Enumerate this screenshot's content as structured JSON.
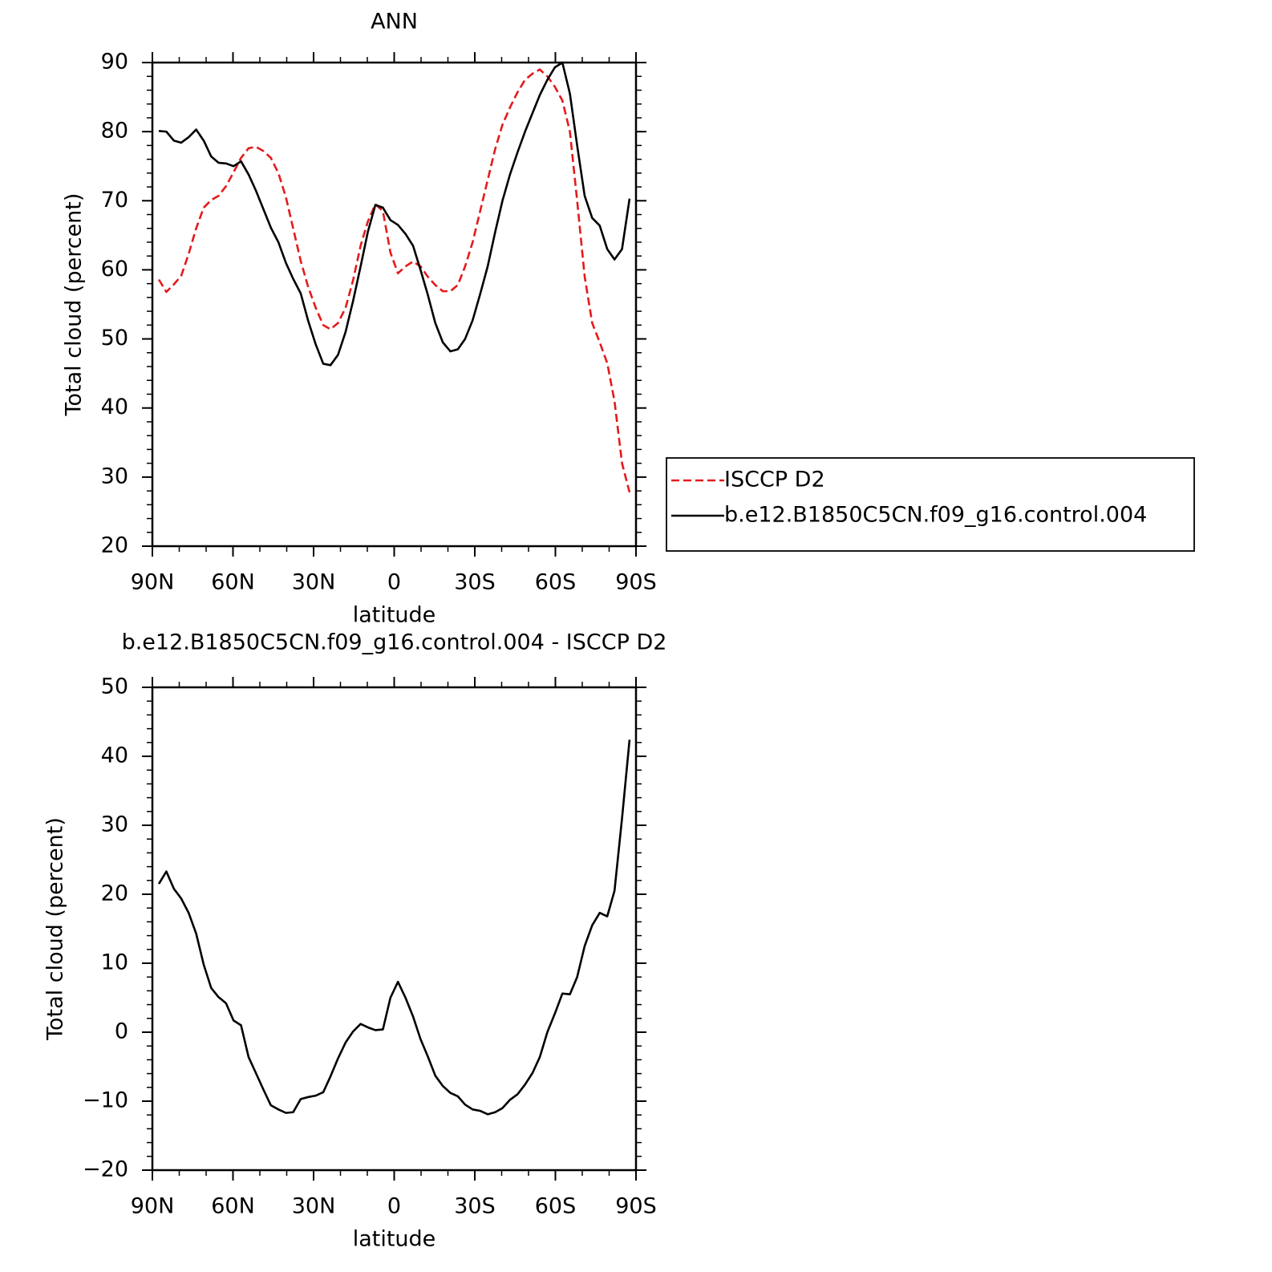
{
  "chart_data": [
    {
      "type": "line",
      "title": "ANN",
      "xlabel": "latitude",
      "ylabel": "Total cloud (percent)",
      "xlim": [
        90,
        -90
      ],
      "xticks": [
        {
          "value": 90,
          "label": "90N"
        },
        {
          "value": 60,
          "label": "60N"
        },
        {
          "value": 30,
          "label": "30N"
        },
        0,
        {
          "value": -30,
          "label": "30S"
        },
        {
          "value": -60,
          "label": "60S"
        },
        {
          "value": -90,
          "label": "90S"
        }
      ],
      "xminor": 10,
      "ylim": [
        20,
        90
      ],
      "yticks": [
        20,
        30,
        40,
        50,
        60,
        70,
        80,
        90
      ],
      "yminor": 2,
      "legend": "outside-right",
      "x": [
        87.6,
        84.8,
        82.0,
        79.3,
        76.5,
        73.7,
        70.9,
        68.1,
        65.4,
        62.6,
        59.8,
        57.0,
        54.2,
        51.5,
        48.7,
        45.9,
        43.1,
        40.3,
        37.6,
        34.8,
        32.0,
        29.2,
        26.4,
        23.7,
        20.9,
        18.1,
        15.3,
        12.5,
        9.8,
        7.0,
        4.2,
        1.4,
        -1.4,
        -4.2,
        -7.0,
        -9.8,
        -12.5,
        -15.3,
        -18.1,
        -20.9,
        -23.7,
        -26.4,
        -29.2,
        -32.0,
        -34.8,
        -37.6,
        -40.3,
        -43.1,
        -45.9,
        -48.7,
        -51.5,
        -54.2,
        -57.0,
        -59.8,
        -62.6,
        -65.4,
        -68.1,
        -70.9,
        -73.7,
        -76.5,
        -79.3,
        -82.0,
        -84.8,
        -87.6
      ],
      "series": [
        {
          "name": "ISCCP D2",
          "color": "#e41a1c",
          "style": "dashed",
          "values": [
            58.6,
            56.8,
            57.9,
            59.1,
            62.3,
            66,
            69,
            70.1,
            70.7,
            72.1,
            74.1,
            76.2,
            77.6,
            77.8,
            77.2,
            76.2,
            74,
            70.5,
            66,
            61.3,
            57.5,
            54.5,
            52,
            51.4,
            52.3,
            54.5,
            58.5,
            63.5,
            67,
            69.5,
            68.5,
            62.5,
            59.5,
            60.5,
            61.2,
            60.5,
            59,
            57.8,
            56.9,
            56.9,
            57.8,
            60.5,
            64,
            68.5,
            73,
            77.5,
            81,
            83.5,
            85.7,
            87.5,
            88.4,
            89,
            88,
            86.5,
            84.5,
            80,
            70,
            59,
            52.3,
            49.5,
            46.5,
            41,
            32,
            27.8
          ]
        },
        {
          "name": "b.e12.B1850C5CN.f09_g16.control.004",
          "color": "#000000",
          "style": "solid",
          "values": [
            80.1,
            80.0,
            78.7,
            78.4,
            79.2,
            80.3,
            78.7,
            76.4,
            75.5,
            75.4,
            75.0,
            75.7,
            73.8,
            71.5,
            68.8,
            66.1,
            64,
            61,
            58.7,
            56.6,
            52.6,
            49.2,
            46.4,
            46.2,
            47.7,
            51,
            55.5,
            60.5,
            65.5,
            69.4,
            69.0,
            67.2,
            66.5,
            65.2,
            63.5,
            60,
            56.4,
            52.3,
            49.5,
            48.2,
            48.5,
            50,
            52.7,
            56.5,
            60.5,
            65.5,
            70,
            73.8,
            77,
            80,
            82.7,
            85.3,
            87.5,
            89.3,
            90.0,
            85.5,
            78,
            70.7,
            67.5,
            66.4,
            63,
            61.5,
            63,
            70.3
          ]
        }
      ]
    },
    {
      "type": "line",
      "title": "b.e12.B1850C5CN.f09_g16.control.004 - ISCCP D2",
      "xlabel": "latitude",
      "ylabel": "Total cloud (percent)",
      "xlim": [
        90,
        -90
      ],
      "xticks": [
        {
          "value": 90,
          "label": "90N"
        },
        {
          "value": 60,
          "label": "60N"
        },
        {
          "value": 30,
          "label": "30N"
        },
        0,
        {
          "value": -30,
          "label": "30S"
        },
        {
          "value": -60,
          "label": "60S"
        },
        {
          "value": -90,
          "label": "90S"
        }
      ],
      "xminor": 10,
      "ylim": [
        -20,
        50
      ],
      "yticks": [
        {
          "value": -20,
          "label": "−20"
        },
        {
          "value": -10,
          "label": "−10"
        },
        0,
        10,
        20,
        30,
        40,
        50
      ],
      "yminor": 2,
      "x": [
        87.6,
        84.8,
        82.0,
        79.3,
        76.5,
        73.7,
        70.9,
        68.1,
        65.4,
        62.6,
        59.8,
        57.0,
        54.2,
        51.5,
        48.7,
        45.9,
        43.1,
        40.3,
        37.6,
        34.8,
        32.0,
        29.2,
        26.4,
        23.7,
        20.9,
        18.1,
        15.3,
        12.5,
        9.8,
        7.0,
        4.2,
        1.4,
        -1.4,
        -4.2,
        -7.0,
        -9.8,
        -12.5,
        -15.3,
        -18.1,
        -20.9,
        -23.7,
        -26.4,
        -29.2,
        -32.0,
        -34.8,
        -37.6,
        -40.3,
        -43.1,
        -45.9,
        -48.7,
        -51.5,
        -54.2,
        -57.0,
        -59.8,
        -62.6,
        -65.4,
        -68.1,
        -70.9,
        -73.7,
        -76.5,
        -79.3,
        -82.0,
        -84.8,
        -87.6
      ],
      "series": [
        {
          "color": "#000000",
          "style": "solid",
          "values": [
            21.5,
            23.3,
            20.8,
            19.4,
            17.3,
            14.3,
            9.8,
            6.4,
            5.1,
            4.2,
            1.7,
            1.0,
            -3.6,
            -5.9,
            -8.3,
            -10.6,
            -11.2,
            -11.7,
            -11.6,
            -9.7,
            -9.4,
            -9.2,
            -8.7,
            -6.4,
            -3.8,
            -1.5,
            0.1,
            1.2,
            0.7,
            0.3,
            0.4,
            5,
            7.3,
            5,
            2.3,
            -1,
            -3.5,
            -6.3,
            -7.8,
            -8.8,
            -9.3,
            -10.5,
            -11.2,
            -11.4,
            -11.9,
            -11.6,
            -11,
            -9.8,
            -9,
            -7.6,
            -5.9,
            -3.6,
            0,
            2.7,
            5.6,
            5.5,
            8,
            12.5,
            15.5,
            17.3,
            16.8,
            20.5,
            31,
            42.4
          ]
        }
      ]
    }
  ]
}
